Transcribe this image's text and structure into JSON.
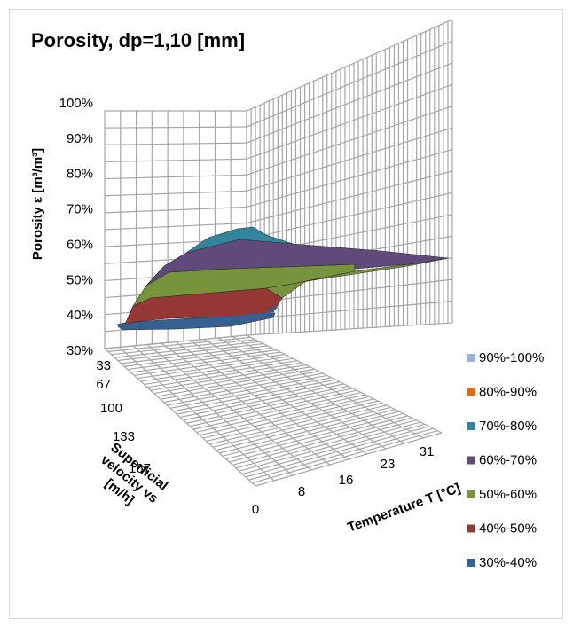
{
  "chart_data": {
    "type": "surface",
    "title": "Porosity, dp=1,10 [mm]",
    "zlabel": "Porosity ε [m³/m³]",
    "xlabel": "Temperature T [°C]",
    "ylabel": "Superficial velocity vs [m/h]",
    "z_ticks": [
      "30%",
      "40%",
      "50%",
      "60%",
      "70%",
      "80%",
      "90%",
      "100%"
    ],
    "zlim": [
      0.3,
      1.0
    ],
    "temperature_ticks": [
      "0",
      "8",
      "16",
      "23",
      "31"
    ],
    "velocity_ticks": [
      "33",
      "67",
      "100",
      "133",
      "167"
    ],
    "legend": [
      {
        "label": "90%-100%",
        "color": "#95b3d7"
      },
      {
        "label": "80%-90%",
        "color": "#e46c0a"
      },
      {
        "label": "70%-80%",
        "color": "#31859c"
      },
      {
        "label": "60%-70%",
        "color": "#604a7b"
      },
      {
        "label": "50%-60%",
        "color": "#77933c"
      },
      {
        "label": "40%-50%",
        "color": "#953735"
      },
      {
        "label": "30%-40%",
        "color": "#376092"
      }
    ],
    "surface_profile_temperature_edge": [
      {
        "T": 0,
        "porosity": 0.38
      },
      {
        "T": 8,
        "porosity": 0.39
      },
      {
        "T": 16,
        "porosity": 0.41
      },
      {
        "T": 23,
        "porosity": 0.49
      },
      {
        "T": 31,
        "porosity": 0.57
      }
    ],
    "surface_profile_velocity_edge": [
      {
        "vs": 0,
        "porosity": 0.38
      },
      {
        "vs": 33,
        "porosity": 0.47
      },
      {
        "vs": 67,
        "porosity": 0.54
      },
      {
        "vs": 100,
        "porosity": 0.59
      },
      {
        "vs": 133,
        "porosity": 0.62
      },
      {
        "vs": 167,
        "porosity": 0.64
      }
    ]
  }
}
